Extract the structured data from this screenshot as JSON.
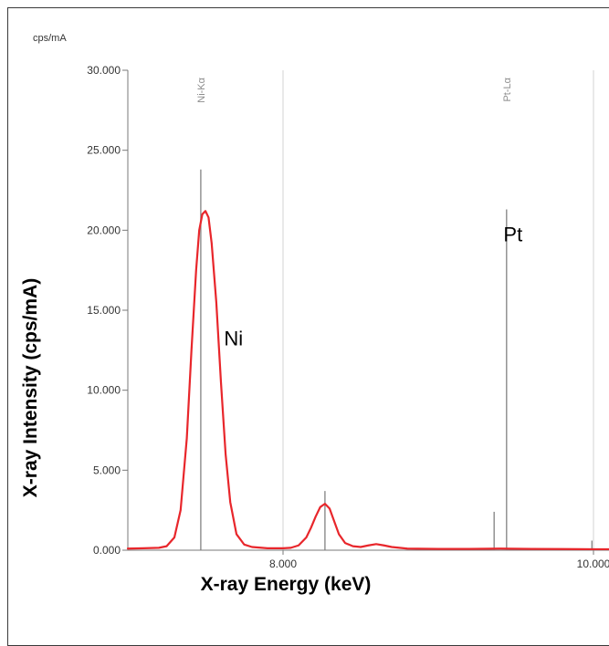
{
  "chart_data": {
    "type": "line",
    "ylabel": "X-ray Intensity (cps/mA)",
    "xlabel": "X-ray Energy (keV)",
    "y_unit": "cps/mA",
    "xlim": [
      7.0,
      10.1
    ],
    "ylim": [
      0,
      30
    ],
    "grid": true,
    "y_ticks": [
      {
        "value": 0,
        "label": "0.000"
      },
      {
        "value": 5,
        "label": "5.000"
      },
      {
        "value": 10,
        "label": "10.000"
      },
      {
        "value": 15,
        "label": "15.000"
      },
      {
        "value": 20,
        "label": "20.000"
      },
      {
        "value": 25,
        "label": "25.000"
      },
      {
        "value": 30,
        "label": "30.000"
      }
    ],
    "x_ticks": [
      {
        "value": 8.0,
        "label": "8.000"
      },
      {
        "value": 10.0,
        "label": "10.000"
      }
    ],
    "marker_lines": [
      {
        "label": "Ni-Kα",
        "x": 7.47,
        "y": 23.8
      },
      {
        "label": "Pt-Lα",
        "x": 9.44,
        "y": 21.3
      },
      {
        "label": "",
        "x": 8.27,
        "y": 3.7
      },
      {
        "label": "",
        "x": 9.36,
        "y": 2.4
      },
      {
        "label": "",
        "x": 9.99,
        "y": 0.6
      }
    ],
    "annotations": [
      {
        "text": "Ni",
        "x": 7.62,
        "y": 12.8
      },
      {
        "text": "Pt",
        "x": 9.42,
        "y": 19.3
      }
    ],
    "series": [
      {
        "color": "#e8262b",
        "x": [
          7.0,
          7.1,
          7.2,
          7.25,
          7.3,
          7.34,
          7.38,
          7.41,
          7.44,
          7.46,
          7.48,
          7.5,
          7.52,
          7.54,
          7.57,
          7.6,
          7.63,
          7.66,
          7.7,
          7.75,
          7.8,
          7.9,
          8.0,
          8.05,
          8.1,
          8.15,
          8.18,
          8.21,
          8.24,
          8.27,
          8.3,
          8.33,
          8.36,
          8.4,
          8.45,
          8.5,
          8.55,
          8.6,
          8.65,
          8.7,
          8.8,
          9.0,
          9.2,
          9.4,
          9.6,
          9.8,
          10.0,
          10.1
        ],
        "y": [
          0.1,
          0.12,
          0.15,
          0.25,
          0.8,
          2.5,
          7.0,
          12.5,
          17.5,
          20.0,
          21.0,
          21.2,
          20.8,
          19.2,
          15.5,
          10.5,
          6.0,
          3.0,
          1.0,
          0.35,
          0.2,
          0.12,
          0.12,
          0.15,
          0.3,
          0.8,
          1.4,
          2.1,
          2.7,
          2.9,
          2.6,
          1.8,
          1.0,
          0.45,
          0.25,
          0.2,
          0.3,
          0.38,
          0.3,
          0.2,
          0.1,
          0.08,
          0.08,
          0.1,
          0.08,
          0.07,
          0.06,
          0.06
        ]
      }
    ]
  }
}
